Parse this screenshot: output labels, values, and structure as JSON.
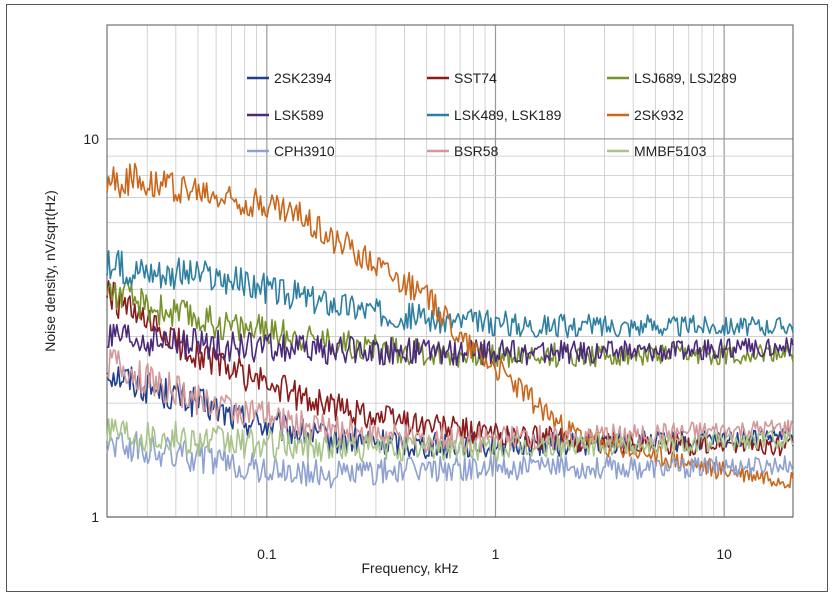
{
  "chart_data": {
    "type": "line",
    "title": "",
    "xlabel": "Frequency, kHz",
    "ylabel": "Noise density, nV/sqrt(Hz)",
    "x_scale": "log",
    "y_scale": "log",
    "xlim": [
      0.02,
      20
    ],
    "ylim": [
      1,
      20
    ],
    "x_ticks": [
      {
        "value": 0.1,
        "label": "0.1"
      },
      {
        "value": 1,
        "label": "1"
      },
      {
        "value": 10,
        "label": "10"
      }
    ],
    "y_ticks": [
      {
        "value": 1,
        "label": "1"
      },
      {
        "value": 10,
        "label": "10"
      }
    ],
    "grid": true,
    "legend_position": "top",
    "x": [
      0.02,
      0.03,
      0.05,
      0.07,
      0.1,
      0.15,
      0.2,
      0.3,
      0.4,
      0.5,
      0.6,
      0.7,
      1,
      1.5,
      2,
      3,
      5,
      7,
      10,
      15,
      20
    ],
    "series": [
      {
        "name": "2SK2394",
        "color": "#1f3f8f",
        "values": [
          2.45,
          2.2,
          2.0,
          1.85,
          1.75,
          1.65,
          1.6,
          1.58,
          1.56,
          1.55,
          1.55,
          1.55,
          1.55,
          1.56,
          1.56,
          1.57,
          1.58,
          1.58,
          1.6,
          1.62,
          1.65
        ]
      },
      {
        "name": "SST74",
        "color": "#8b1a1a",
        "values": [
          3.9,
          3.2,
          2.7,
          2.45,
          2.25,
          2.05,
          1.95,
          1.85,
          1.8,
          1.75,
          1.72,
          1.7,
          1.65,
          1.62,
          1.6,
          1.58,
          1.56,
          1.55,
          1.55,
          1.54,
          1.53
        ]
      },
      {
        "name": "LSJ689, LSJ289",
        "color": "#77922b",
        "values": [
          4.0,
          3.6,
          3.35,
          3.2,
          3.1,
          2.98,
          2.9,
          2.8,
          2.75,
          2.72,
          2.7,
          2.69,
          2.68,
          2.68,
          2.68,
          2.68,
          2.68,
          2.68,
          2.69,
          2.7,
          2.7
        ]
      },
      {
        "name": "LSK589",
        "color": "#4b2a7a",
        "values": [
          2.95,
          2.9,
          2.85,
          2.82,
          2.8,
          2.78,
          2.76,
          2.75,
          2.74,
          2.73,
          2.73,
          2.72,
          2.72,
          2.72,
          2.73,
          2.74,
          2.75,
          2.76,
          2.78,
          2.8,
          2.82
        ]
      },
      {
        "name": "LSK489, LSK189",
        "color": "#2f7fa3",
        "values": [
          4.6,
          4.5,
          4.35,
          4.2,
          4.0,
          3.8,
          3.65,
          3.5,
          3.4,
          3.35,
          3.3,
          3.28,
          3.25,
          3.22,
          3.2,
          3.2,
          3.2,
          3.2,
          3.2,
          3.2,
          3.22
        ]
      },
      {
        "name": "2SK932",
        "color": "#c9681c",
        "values": [
          7.7,
          7.8,
          7.2,
          6.9,
          6.7,
          6.1,
          5.4,
          4.7,
          4.2,
          3.8,
          3.4,
          3.0,
          2.5,
          2.0,
          1.7,
          1.55,
          1.45,
          1.38,
          1.32,
          1.28,
          1.25
        ]
      },
      {
        "name": "CPH3910",
        "color": "#8ea1d1",
        "values": [
          1.6,
          1.5,
          1.45,
          1.38,
          1.33,
          1.3,
          1.3,
          1.32,
          1.33,
          1.34,
          1.35,
          1.35,
          1.35,
          1.35,
          1.35,
          1.35,
          1.35,
          1.35,
          1.36,
          1.37,
          1.38
        ]
      },
      {
        "name": "BSR58",
        "color": "#d49898",
        "values": [
          2.6,
          2.3,
          2.05,
          1.95,
          1.85,
          1.75,
          1.7,
          1.65,
          1.62,
          1.6,
          1.6,
          1.6,
          1.6,
          1.62,
          1.62,
          1.64,
          1.65,
          1.67,
          1.68,
          1.7,
          1.72
        ]
      },
      {
        "name": "MMBF5103",
        "color": "#a8c48a",
        "values": [
          1.75,
          1.65,
          1.6,
          1.57,
          1.55,
          1.54,
          1.53,
          1.52,
          1.52,
          1.52,
          1.52,
          1.52,
          1.52,
          1.53,
          1.54,
          1.55,
          1.56,
          1.57,
          1.58,
          1.6,
          1.62
        ]
      }
    ]
  }
}
